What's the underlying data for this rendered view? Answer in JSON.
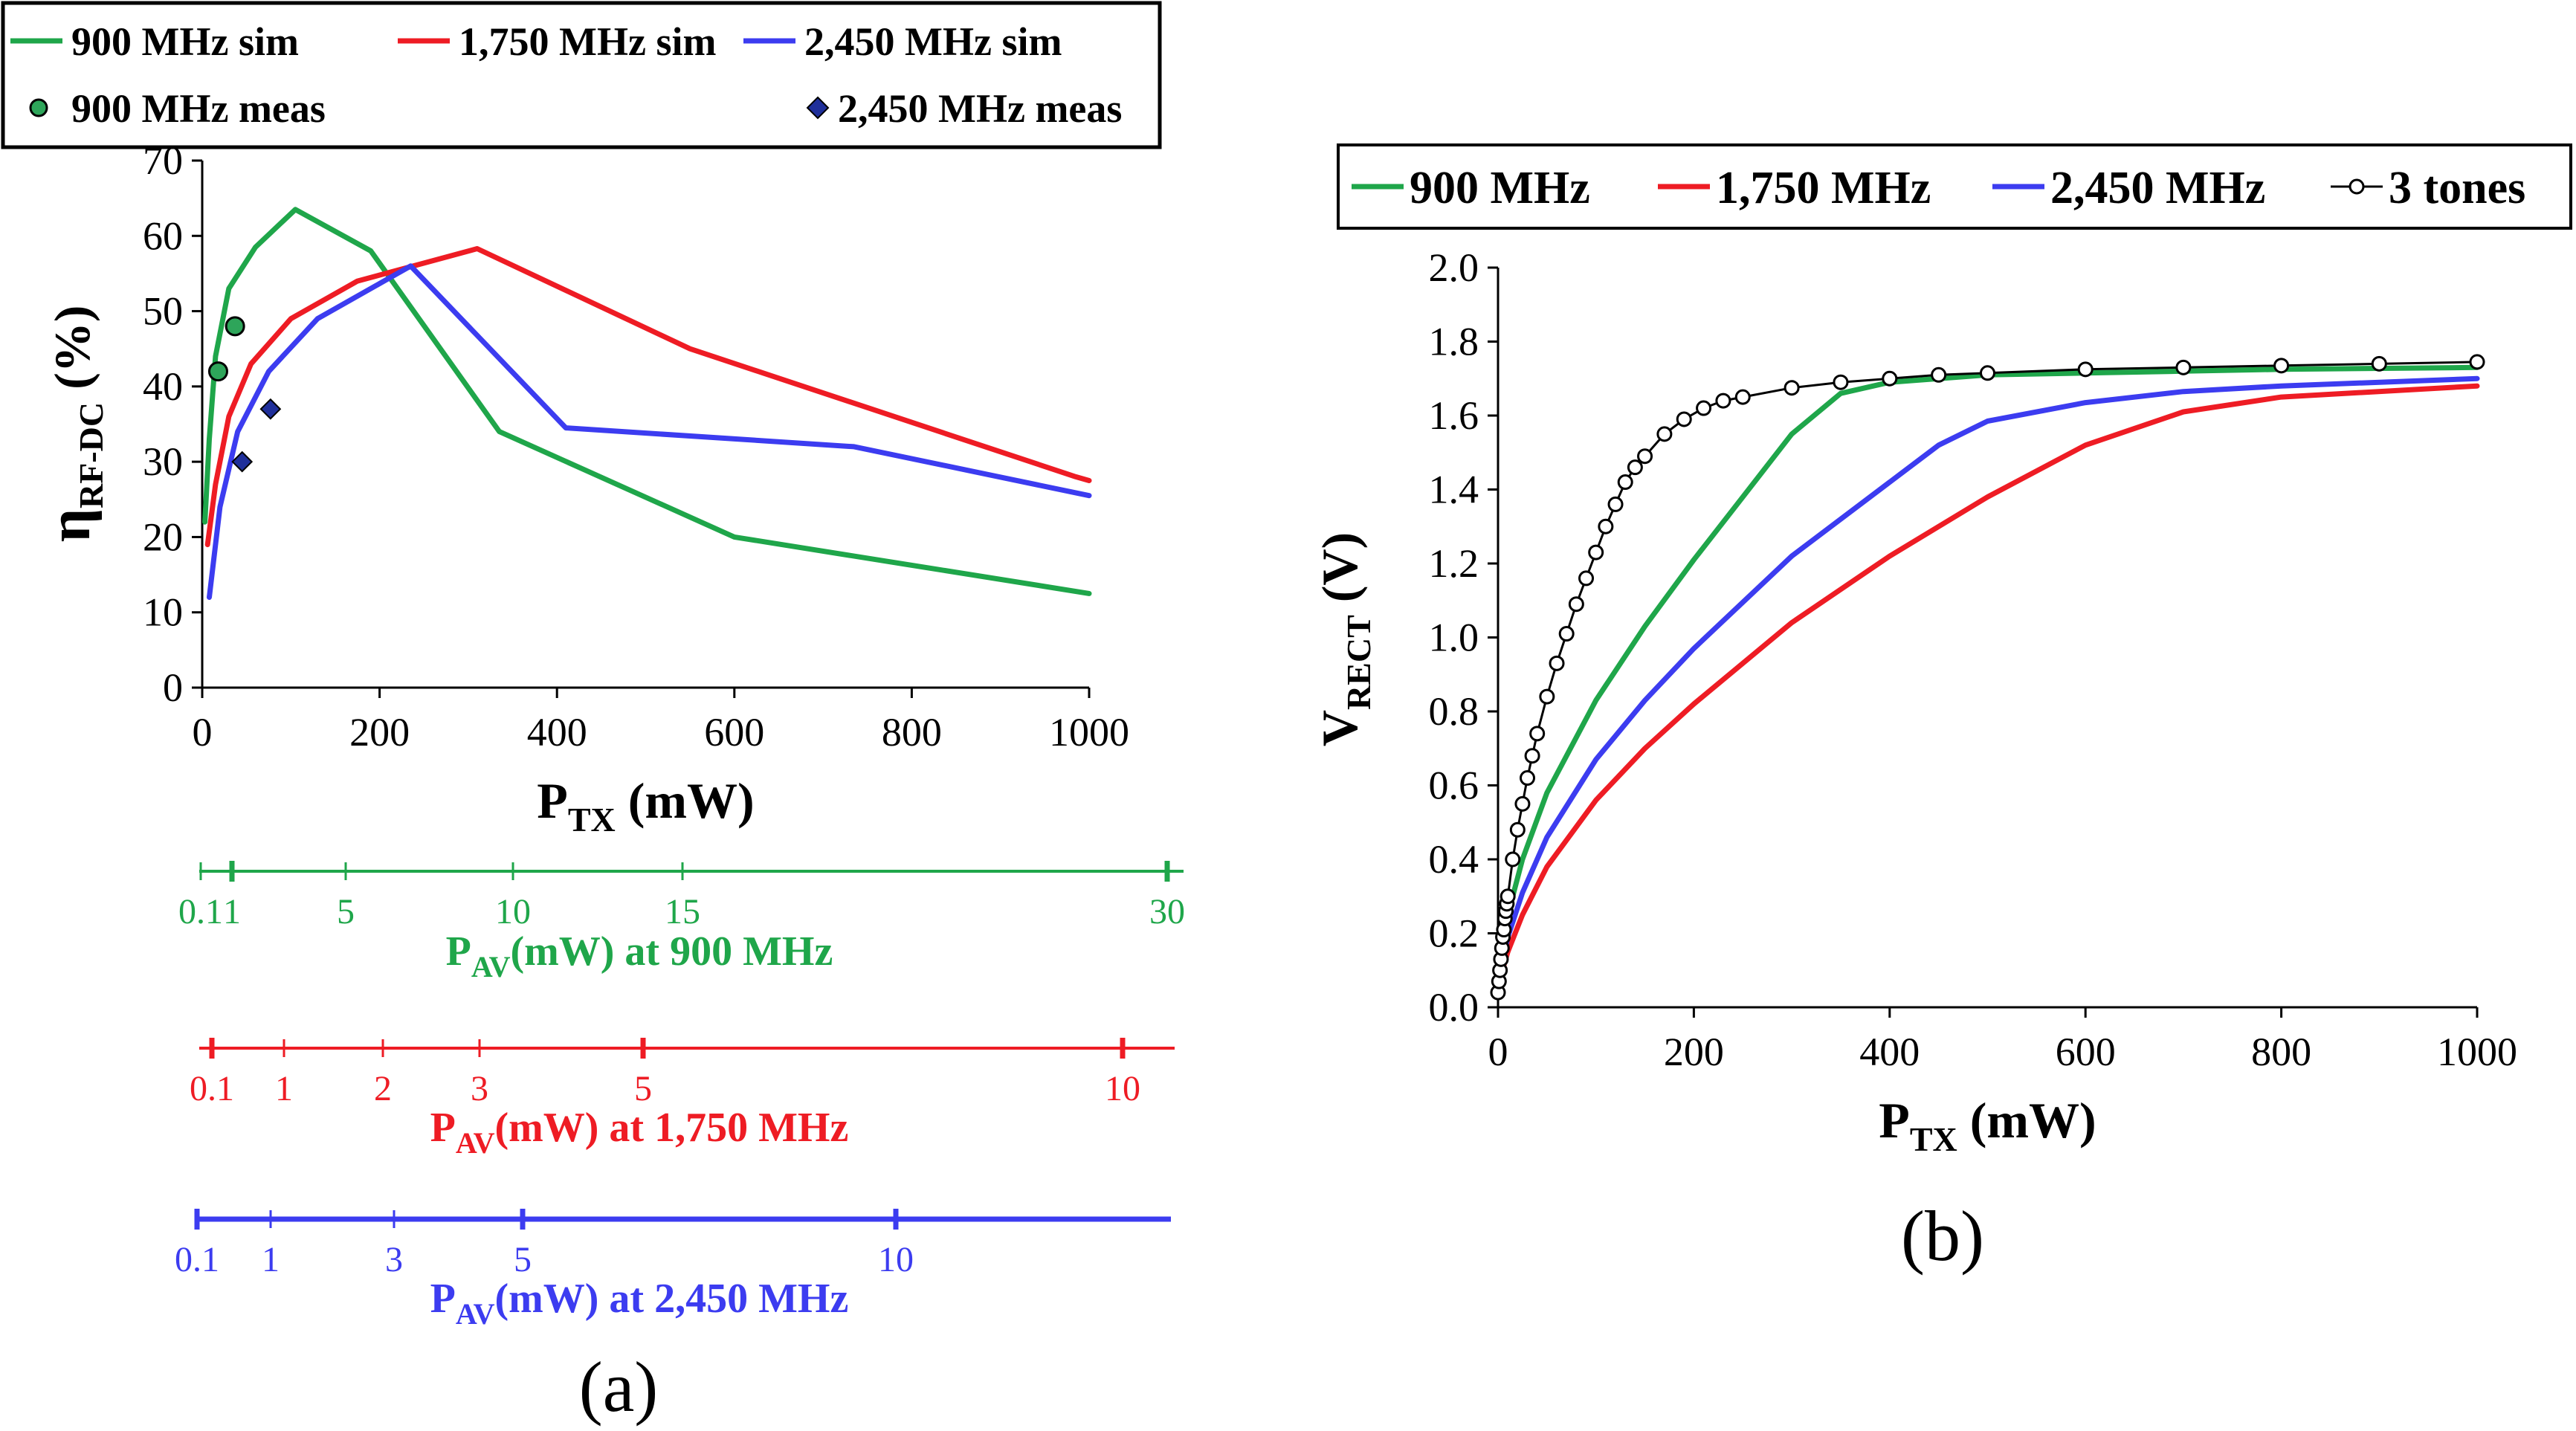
{
  "colors": {
    "green": "#1fa64a",
    "red": "#ee1c24",
    "blue": "#3c3cf0",
    "black": "#000000",
    "meas_green_fill": "#2ea55a",
    "meas_blue_fill": "#1f2f9a"
  },
  "chart_data": [
    {
      "id": "a",
      "type": "line",
      "panel_label": "(a)",
      "xlabel": "P",
      "xlabel_sub": "TX",
      "xlabel_suffix": " (mW)",
      "ylabel": "η",
      "ylabel_sub": "RF-DC",
      "ylabel_suffix": " (%)",
      "xlim": [
        0,
        1000
      ],
      "ylim": [
        0,
        70
      ],
      "xticks": [
        0,
        200,
        400,
        600,
        800,
        1000
      ],
      "yticks": [
        0,
        10,
        20,
        30,
        40,
        50,
        60,
        70
      ],
      "legend": [
        {
          "label": "900 MHz sim",
          "kind": "line",
          "color": "green"
        },
        {
          "label": "1,750 MHz sim",
          "kind": "line",
          "color": "red"
        },
        {
          "label": "2,450 MHz sim",
          "kind": "line",
          "color": "blue"
        },
        {
          "label": "900 MHz meas",
          "kind": "circle",
          "color": "green"
        },
        {
          "label": "2,450 MHz meas",
          "kind": "diamond",
          "color": "blue"
        }
      ],
      "series": [
        {
          "name": "900 MHz sim",
          "color": "green",
          "kind": "line",
          "x": [
            3,
            8,
            15,
            30,
            60,
            105,
            190,
            335,
            600,
            1000
          ],
          "y": [
            22,
            33,
            44,
            53,
            58.5,
            63.5,
            58,
            34,
            20,
            12.5
          ]
        },
        {
          "name": "1,750 MHz sim",
          "color": "red",
          "kind": "line",
          "x": [
            6,
            15,
            30,
            55,
            100,
            175,
            310,
            550,
            985,
            1000
          ],
          "y": [
            19,
            27,
            36,
            43,
            49,
            54,
            58.3,
            45,
            28,
            27.5
          ]
        },
        {
          "name": "2,450 MHz sim",
          "color": "blue",
          "kind": "line",
          "x": [
            8,
            20,
            40,
            75,
            130,
            235,
            410,
            735,
            1000
          ],
          "y": [
            12,
            24,
            34,
            42,
            49,
            56,
            34.5,
            32,
            25.5
          ]
        },
        {
          "name": "900 MHz meas",
          "color": "green",
          "kind": "circle",
          "x": [
            18,
            37
          ],
          "y": [
            42,
            48
          ]
        },
        {
          "name": "2,450 MHz meas",
          "color": "blue",
          "kind": "diamond",
          "x": [
            45,
            77
          ],
          "y": [
            30,
            37
          ]
        }
      ],
      "pav_axes": [
        {
          "color": "green",
          "title": "P",
          "title_sub": "AV",
          "title_suffix": "(mW) at 900 MHz",
          "ticks": [
            "0.1",
            "1",
            "5",
            "10",
            "15",
            "30"
          ]
        },
        {
          "color": "red",
          "title": "P",
          "title_sub": "AV",
          "title_suffix": "(mW) at 1,750 MHz",
          "ticks": [
            "0.1",
            "1",
            "2",
            "3",
            "5",
            "10"
          ]
        },
        {
          "color": "blue",
          "title": "P",
          "title_sub": "AV",
          "title_suffix": "(mW) at 2,450 MHz",
          "ticks": [
            "0.1",
            "1",
            "3",
            "5",
            "10"
          ]
        }
      ]
    },
    {
      "id": "b",
      "type": "line",
      "panel_label": "(b)",
      "xlabel": "P",
      "xlabel_sub": "TX",
      "xlabel_suffix": " (mW)",
      "ylabel": "V",
      "ylabel_sub": "RECT",
      "ylabel_suffix": " (V)",
      "xlim": [
        0,
        1000
      ],
      "ylim": [
        0,
        2.0
      ],
      "xticks": [
        0,
        200,
        400,
        600,
        800,
        1000
      ],
      "yticks": [
        0.0,
        0.2,
        0.4,
        0.6,
        0.8,
        1.0,
        1.2,
        1.4,
        1.6,
        1.8,
        2.0
      ],
      "yticks_labels": [
        "0.0",
        "0.2",
        "0.4",
        "0.6",
        "0.8",
        "1.0",
        "1.2",
        "1.4",
        "1.6",
        "1.8",
        "2.0"
      ],
      "legend": [
        {
          "label": "900 MHz",
          "kind": "line",
          "color": "green"
        },
        {
          "label": "1,750 MHz",
          "kind": "line",
          "color": "red"
        },
        {
          "label": "2,450 MHz",
          "kind": "line",
          "color": "blue"
        },
        {
          "label": "3 tones",
          "kind": "line-circle",
          "color": "black"
        }
      ],
      "series": [
        {
          "name": "900 MHz",
          "color": "green",
          "kind": "line",
          "x": [
            0,
            10,
            25,
            50,
            100,
            150,
            200,
            250,
            300,
            350,
            400,
            500,
            600,
            700,
            800,
            1000
          ],
          "y": [
            0.08,
            0.25,
            0.4,
            0.58,
            0.83,
            1.03,
            1.21,
            1.38,
            1.55,
            1.66,
            1.69,
            1.71,
            1.715,
            1.72,
            1.725,
            1.73
          ]
        },
        {
          "name": "1,750 MHz",
          "color": "red",
          "kind": "line",
          "x": [
            0,
            10,
            25,
            50,
            100,
            150,
            200,
            300,
            400,
            500,
            600,
            700,
            800,
            1000
          ],
          "y": [
            0.06,
            0.15,
            0.25,
            0.38,
            0.56,
            0.7,
            0.82,
            1.04,
            1.22,
            1.38,
            1.52,
            1.61,
            1.65,
            1.68
          ]
        },
        {
          "name": "2,450 MHz",
          "color": "blue",
          "kind": "line",
          "x": [
            0,
            10,
            25,
            50,
            100,
            150,
            200,
            300,
            400,
            450,
            500,
            600,
            700,
            800,
            1000
          ],
          "y": [
            0.07,
            0.19,
            0.31,
            0.46,
            0.67,
            0.83,
            0.97,
            1.22,
            1.42,
            1.52,
            1.585,
            1.635,
            1.665,
            1.68,
            1.7
          ]
        },
        {
          "name": "3 tones",
          "color": "black",
          "kind": "line-circle",
          "x": [
            0,
            1,
            2,
            3,
            4,
            5,
            6,
            7,
            8,
            9,
            10,
            15,
            20,
            25,
            30,
            35,
            40,
            50,
            60,
            70,
            80,
            90,
            100,
            110,
            120,
            130,
            140,
            150,
            170,
            190,
            210,
            230,
            250,
            300,
            350,
            400,
            450,
            500,
            600,
            700,
            800,
            900,
            1000
          ],
          "y": [
            0.04,
            0.07,
            0.1,
            0.13,
            0.16,
            0.19,
            0.21,
            0.24,
            0.26,
            0.28,
            0.3,
            0.4,
            0.48,
            0.55,
            0.62,
            0.68,
            0.74,
            0.84,
            0.93,
            1.01,
            1.09,
            1.16,
            1.23,
            1.3,
            1.36,
            1.42,
            1.46,
            1.49,
            1.55,
            1.59,
            1.62,
            1.64,
            1.65,
            1.675,
            1.69,
            1.7,
            1.71,
            1.715,
            1.725,
            1.73,
            1.735,
            1.74,
            1.745
          ]
        }
      ]
    }
  ]
}
